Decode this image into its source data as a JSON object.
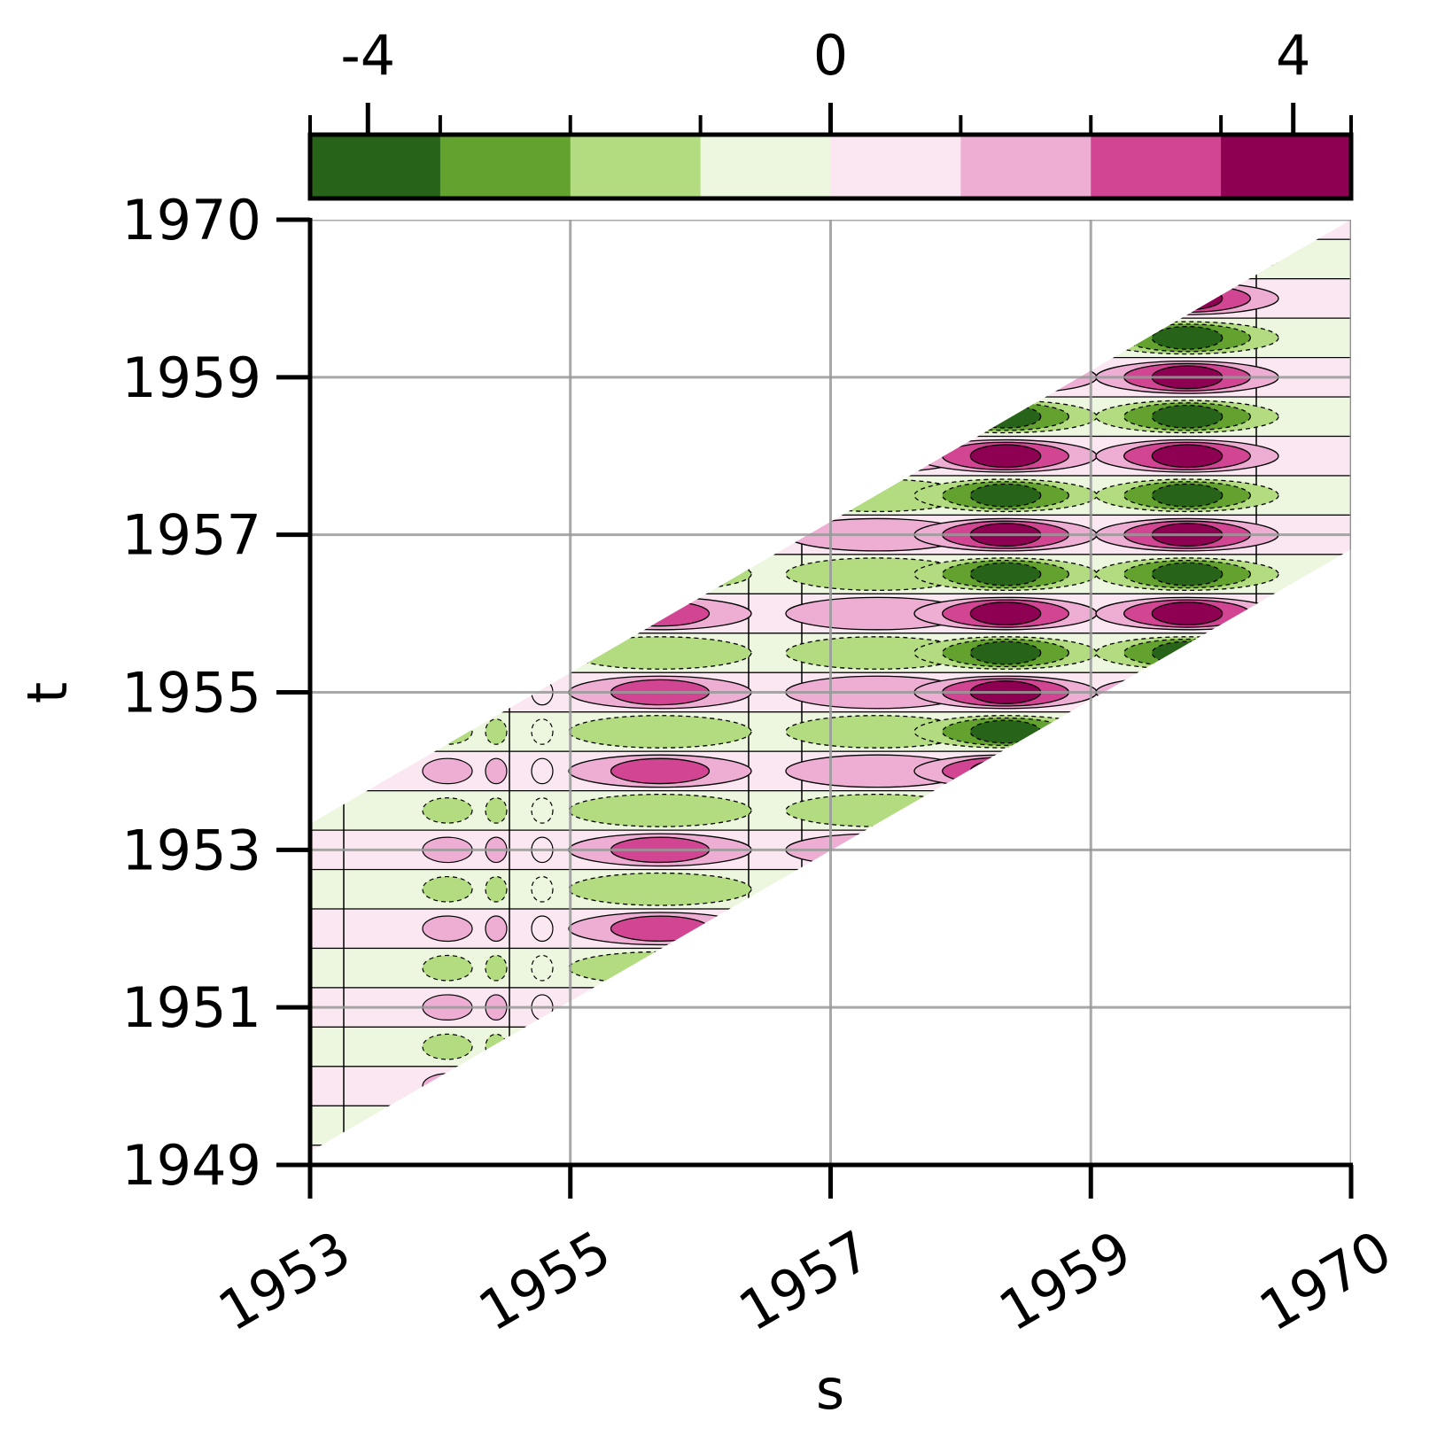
{
  "chart_data": {
    "type": "heatmap",
    "title": "",
    "xlabel": "s",
    "ylabel": "t",
    "x_ticks": [
      "1953",
      "1955",
      "1957",
      "1959",
      "1970"
    ],
    "y_ticks": [
      "1949",
      "1951",
      "1953",
      "1955",
      "1957",
      "1959",
      "1970"
    ],
    "grid": true,
    "colorbar": {
      "location": "top",
      "ticks": [
        {
          "value": -4,
          "label": "-4"
        },
        {
          "value": 0,
          "label": "0"
        },
        {
          "value": 4,
          "label": "4"
        }
      ],
      "range": [
        -4.5,
        4.5
      ],
      "levels": [
        -4.5,
        -3.375,
        -2.25,
        -1.125,
        0,
        1.125,
        2.25,
        3.375,
        4.5
      ],
      "colors": [
        "#276419",
        "#63a22f",
        "#b3dc80",
        "#edf6de",
        "#fbe7f1",
        "#eeaed4",
        "#d24592",
        "#8e0152"
      ]
    },
    "description_of_field": "Seasonal covariance-like surface over lag band: alternating positive (pink) and negative (green) horizontal bands, strongest near s≈1960 and s≈1958.5",
    "band": {
      "s_range": [
        "1953",
        "1970"
      ],
      "t_lower_edge_at_s_start": "1949",
      "t_upper_edge_at_s_start": "1953"
    },
    "hotspots": [
      {
        "s": 1955.7,
        "sign": "positive",
        "peak": 2.5
      },
      {
        "s": 1955.7,
        "sign": "negative",
        "peak": -2.0
      },
      {
        "s": 1957.5,
        "sign": "positive",
        "peak": 2.2
      },
      {
        "s": 1957.5,
        "sign": "negative",
        "peak": -2.0
      },
      {
        "s": 1958.5,
        "sign": "positive",
        "peak": 3.6
      },
      {
        "s": 1958.5,
        "sign": "negative",
        "peak": -3.6
      },
      {
        "s": 1960.0,
        "sign": "positive",
        "peak": 4.2
      },
      {
        "s": 1960.0,
        "sign": "negative",
        "peak": -3.8
      }
    ]
  }
}
